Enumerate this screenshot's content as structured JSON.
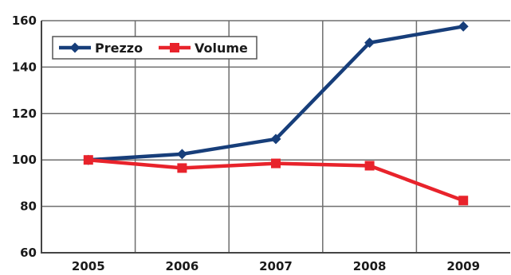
{
  "chart_data": {
    "type": "line",
    "categories": [
      "2005",
      "2006",
      "2007",
      "2008",
      "2009"
    ],
    "series": [
      {
        "name": "Prezzo",
        "values": [
          100,
          102.5,
          109,
          150.5,
          157.5
        ],
        "color": "#173e7a",
        "marker": "diamond"
      },
      {
        "name": "Volume",
        "values": [
          100,
          96.5,
          98.5,
          97.5,
          82.5
        ],
        "color": "#e8232b",
        "marker": "square"
      }
    ],
    "ylim": [
      60,
      160
    ],
    "yticks": [
      60,
      80,
      100,
      120,
      140,
      160
    ],
    "grid": true,
    "legend_position": "top-left",
    "colors": {
      "grid": "#6e6e6e",
      "axis": "#444444",
      "text": "#1a1a1a",
      "background": "#ffffff"
    }
  }
}
